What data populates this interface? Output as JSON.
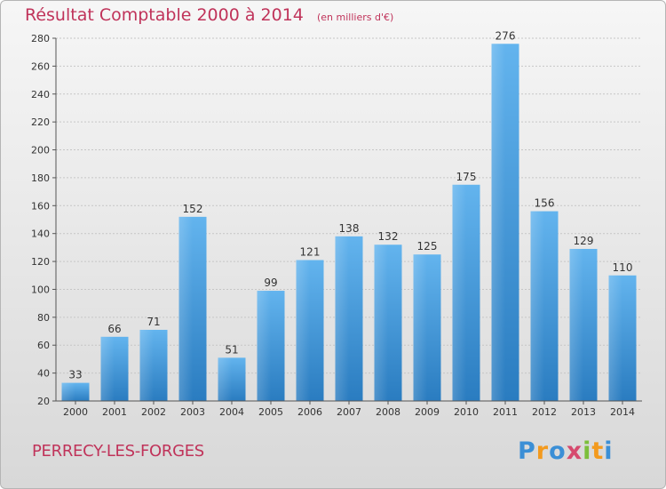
{
  "header": {
    "title": "Résultat Comptable 2000 à 2014",
    "subtitle": "(en milliers d'€)"
  },
  "footer": {
    "place": "PERRECY-LES-FORGES",
    "logo_text": "Proxiti"
  },
  "colors": {
    "title": "#c0335a",
    "bar_light": "#63b4ee",
    "bar_dark": "#2a7cc0"
  },
  "chart_data": {
    "type": "bar",
    "title": "Résultat Comptable 2000 à 2014",
    "subtitle": "(en milliers d'€)",
    "xlabel": "",
    "ylabel": "",
    "categories": [
      "2000",
      "2001",
      "2002",
      "2003",
      "2004",
      "2005",
      "2006",
      "2007",
      "2008",
      "2009",
      "2010",
      "2011",
      "2012",
      "2013",
      "2014"
    ],
    "values": [
      33,
      66,
      71,
      152,
      51,
      99,
      121,
      138,
      132,
      125,
      175,
      276,
      156,
      129,
      110
    ],
    "ylim": [
      20,
      280
    ],
    "yticks": [
      20,
      40,
      60,
      80,
      100,
      120,
      140,
      160,
      180,
      200,
      220,
      240,
      260,
      280
    ],
    "grid": true,
    "data_labels": true,
    "legend": "none"
  }
}
